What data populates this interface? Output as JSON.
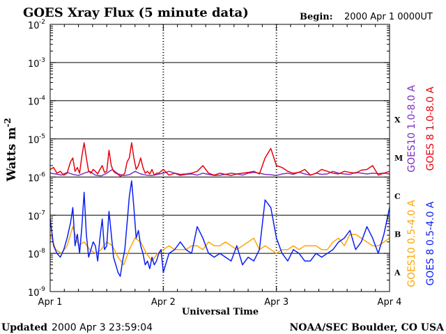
{
  "chart_data": {
    "type": "line",
    "title": "GOES Xray Flux (5 minute data)",
    "begin_label": "Begin:",
    "begin_value": "2000 Apr 1 0000UT",
    "ylabel_base": "Watts m",
    "ylabel_exp": "-2",
    "xlabel": "Universal Time",
    "xlim_days": [
      0,
      3
    ],
    "xticks": [
      {
        "day": 0,
        "label": "Apr 1"
      },
      {
        "day": 1,
        "label": "Apr 2"
      },
      {
        "day": 2,
        "label": "Apr 3"
      },
      {
        "day": 3,
        "label": "Apr 4"
      }
    ],
    "ylim_log10": [
      -9,
      -2
    ],
    "yticks": [
      {
        "exp": -2,
        "label": "-2"
      },
      {
        "exp": -3,
        "label": "-3"
      },
      {
        "exp": -4,
        "label": "-4"
      },
      {
        "exp": -5,
        "label": "-5"
      },
      {
        "exp": -6,
        "label": "-6"
      },
      {
        "exp": -7,
        "label": "-7"
      },
      {
        "exp": -8,
        "label": "-8"
      },
      {
        "exp": -9,
        "label": "-9"
      }
    ],
    "flare_classes": [
      {
        "label": "X",
        "exp": -4
      },
      {
        "label": "M",
        "exp": -5
      },
      {
        "label": "C",
        "exp": -6
      },
      {
        "label": "B",
        "exp": -7
      },
      {
        "label": "A",
        "exp": -8
      }
    ],
    "series": [
      {
        "name": "GOES10 1.0-8.0 A",
        "color": "#7a2fbf",
        "x_days": [
          0,
          0.05,
          0.1,
          0.15,
          0.2,
          0.25,
          0.3,
          0.35,
          0.4,
          0.45,
          0.5,
          0.55,
          0.6,
          0.65,
          0.7,
          0.75,
          0.8,
          0.85,
          0.9,
          0.95,
          1.0,
          1.05,
          1.1,
          1.15,
          1.2,
          1.25,
          1.3,
          1.35,
          1.4,
          1.45,
          1.5,
          1.55,
          1.6,
          1.65,
          1.7,
          1.75,
          1.8,
          1.85,
          1.9,
          1.95,
          2.0,
          2.05,
          2.1,
          2.15,
          2.2,
          2.25,
          2.3,
          2.35,
          2.4,
          2.45,
          2.5,
          2.55,
          2.6,
          2.65,
          2.7,
          2.75,
          2.8,
          2.85,
          2.9,
          2.95,
          3.0
        ],
        "log10_flux": [
          -5.9,
          -5.92,
          -5.95,
          -5.88,
          -5.93,
          -5.96,
          -5.9,
          -5.85,
          -5.95,
          -5.97,
          -5.9,
          -5.8,
          -5.92,
          -5.96,
          -5.94,
          -5.85,
          -5.92,
          -5.95,
          -5.96,
          -5.93,
          -5.9,
          -5.85,
          -5.9,
          -5.96,
          -5.93,
          -5.92,
          -5.95,
          -5.9,
          -5.93,
          -5.96,
          -5.95,
          -5.93,
          -5.9,
          -5.92,
          -5.95,
          -5.9,
          -5.88,
          -5.9,
          -5.93,
          -5.94,
          -5.96,
          -5.92,
          -5.9,
          -5.93,
          -5.87,
          -5.92,
          -5.95,
          -5.9,
          -5.93,
          -5.92,
          -5.85,
          -5.9,
          -5.92,
          -5.93,
          -5.88,
          -5.9,
          -5.92,
          -5.9,
          -5.91,
          -5.9,
          -5.92
        ]
      },
      {
        "name": "GOES 8 1.0-8.0 A",
        "color": "#e8000b",
        "x_days": [
          0,
          0.03,
          0.06,
          0.09,
          0.12,
          0.15,
          0.18,
          0.2,
          0.22,
          0.24,
          0.26,
          0.28,
          0.3,
          0.32,
          0.34,
          0.36,
          0.38,
          0.4,
          0.42,
          0.44,
          0.46,
          0.48,
          0.5,
          0.52,
          0.54,
          0.56,
          0.58,
          0.6,
          0.62,
          0.64,
          0.66,
          0.68,
          0.7,
          0.72,
          0.74,
          0.76,
          0.78,
          0.8,
          0.82,
          0.84,
          0.86,
          0.88,
          0.9,
          0.92,
          0.94,
          0.96,
          0.98,
          1.0,
          1.05,
          1.1,
          1.15,
          1.2,
          1.25,
          1.3,
          1.35,
          1.4,
          1.45,
          1.5,
          1.55,
          1.6,
          1.65,
          1.7,
          1.75,
          1.8,
          1.85,
          1.9,
          1.95,
          2.0,
          2.05,
          2.1,
          2.15,
          2.2,
          2.25,
          2.3,
          2.35,
          2.4,
          2.45,
          2.5,
          2.55,
          2.6,
          2.65,
          2.7,
          2.75,
          2.8,
          2.85,
          2.9,
          2.95,
          3.0
        ],
        "log10_flux": [
          -5.8,
          -5.75,
          -5.9,
          -5.85,
          -5.95,
          -5.9,
          -5.6,
          -5.5,
          -5.85,
          -5.75,
          -5.9,
          -5.45,
          -5.1,
          -5.5,
          -5.85,
          -5.9,
          -5.8,
          -5.85,
          -5.92,
          -5.8,
          -5.7,
          -5.88,
          -5.85,
          -5.3,
          -5.7,
          -5.85,
          -5.9,
          -5.93,
          -5.98,
          -5.95,
          -5.9,
          -5.6,
          -5.5,
          -5.1,
          -5.5,
          -5.8,
          -5.7,
          -5.5,
          -5.75,
          -5.9,
          -5.85,
          -5.92,
          -5.8,
          -5.95,
          -5.9,
          -5.9,
          -5.85,
          -5.8,
          -5.95,
          -5.9,
          -5.93,
          -5.92,
          -5.9,
          -5.85,
          -5.7,
          -5.9,
          -5.95,
          -5.9,
          -5.93,
          -5.96,
          -5.92,
          -5.9,
          -5.88,
          -5.85,
          -5.92,
          -5.5,
          -5.25,
          -5.7,
          -5.75,
          -5.85,
          -5.9,
          -5.88,
          -5.8,
          -5.95,
          -5.9,
          -5.8,
          -5.85,
          -5.9,
          -5.92,
          -5.85,
          -5.88,
          -5.9,
          -5.82,
          -5.8,
          -5.7,
          -5.95,
          -5.9,
          -5.85,
          -5.88,
          -5.8,
          -5.9
        ]
      },
      {
        "name": "GOES10 0.5-4.0 A",
        "color": "#ffa500",
        "x_days": [
          0,
          0.05,
          0.1,
          0.15,
          0.2,
          0.25,
          0.3,
          0.35,
          0.4,
          0.45,
          0.5,
          0.55,
          0.6,
          0.65,
          0.7,
          0.75,
          0.8,
          0.85,
          0.9,
          0.95,
          1.0,
          1.05,
          1.1,
          1.15,
          1.2,
          1.25,
          1.3,
          1.35,
          1.4,
          1.45,
          1.5,
          1.55,
          1.6,
          1.65,
          1.7,
          1.75,
          1.8,
          1.85,
          1.9,
          1.95,
          2.0,
          2.05,
          2.1,
          2.15,
          2.2,
          2.25,
          2.3,
          2.35,
          2.4,
          2.45,
          2.5,
          2.55,
          2.6,
          2.65,
          2.7,
          2.75,
          2.8,
          2.85,
          2.9,
          2.95,
          3.0
        ],
        "log10_flux": [
          -7.5,
          -7.9,
          -8.0,
          -7.8,
          -7.3,
          -7.8,
          -7.7,
          -7.9,
          -8.0,
          -7.9,
          -7.7,
          -7.8,
          -8.1,
          -8.3,
          -7.9,
          -7.6,
          -7.7,
          -8.0,
          -8.2,
          -8.0,
          -7.9,
          -7.8,
          -7.9,
          -7.9,
          -7.9,
          -7.8,
          -7.8,
          -7.9,
          -7.7,
          -7.8,
          -7.8,
          -7.7,
          -7.8,
          -7.9,
          -7.8,
          -7.7,
          -7.6,
          -7.9,
          -7.8,
          -7.9,
          -8.0,
          -7.9,
          -7.9,
          -7.8,
          -7.9,
          -7.8,
          -7.8,
          -7.8,
          -7.9,
          -7.9,
          -7.7,
          -7.6,
          -7.8,
          -7.5,
          -7.5,
          -7.6,
          -7.7,
          -7.8,
          -7.8,
          -7.7,
          -7.6
        ]
      },
      {
        "name": "GOES 8 0.5-4.0 A",
        "color": "#0a1ef5",
        "x_days": [
          0,
          0.03,
          0.06,
          0.09,
          0.12,
          0.15,
          0.18,
          0.2,
          0.22,
          0.24,
          0.26,
          0.28,
          0.3,
          0.32,
          0.34,
          0.36,
          0.38,
          0.4,
          0.42,
          0.44,
          0.46,
          0.48,
          0.5,
          0.52,
          0.54,
          0.56,
          0.58,
          0.6,
          0.62,
          0.64,
          0.66,
          0.68,
          0.7,
          0.72,
          0.74,
          0.76,
          0.78,
          0.8,
          0.82,
          0.84,
          0.86,
          0.88,
          0.9,
          0.92,
          0.94,
          0.96,
          0.98,
          1.0,
          1.05,
          1.1,
          1.15,
          1.2,
          1.25,
          1.3,
          1.35,
          1.4,
          1.45,
          1.5,
          1.55,
          1.6,
          1.65,
          1.7,
          1.75,
          1.8,
          1.85,
          1.9,
          1.95,
          2.0,
          2.05,
          2.1,
          2.15,
          2.2,
          2.25,
          2.3,
          2.35,
          2.4,
          2.45,
          2.5,
          2.55,
          2.6,
          2.65,
          2.7,
          2.75,
          2.8,
          2.85,
          2.9,
          2.95,
          3.0
        ],
        "log10_flux": [
          -7.1,
          -7.8,
          -8.0,
          -8.1,
          -7.9,
          -7.6,
          -7.2,
          -6.8,
          -7.8,
          -7.5,
          -8.0,
          -7.3,
          -6.4,
          -7.5,
          -8.1,
          -7.9,
          -7.7,
          -7.8,
          -8.2,
          -7.6,
          -7.1,
          -7.9,
          -7.8,
          -6.9,
          -7.5,
          -8.1,
          -8.3,
          -8.5,
          -8.6,
          -8.2,
          -7.9,
          -7.2,
          -6.5,
          -6.1,
          -6.8,
          -7.6,
          -7.4,
          -7.8,
          -8.0,
          -8.3,
          -8.2,
          -8.4,
          -8.1,
          -8.3,
          -8.2,
          -8.0,
          -7.9,
          -8.5,
          -8.0,
          -7.9,
          -7.7,
          -7.9,
          -8.0,
          -7.3,
          -7.6,
          -8.0,
          -8.1,
          -8.0,
          -8.1,
          -8.2,
          -7.8,
          -8.3,
          -8.1,
          -8.2,
          -7.9,
          -6.6,
          -6.8,
          -7.6,
          -8.0,
          -8.2,
          -7.9,
          -8.0,
          -8.2,
          -8.2,
          -8.0,
          -8.1,
          -8.0,
          -7.9,
          -7.7,
          -7.6,
          -7.4,
          -7.9,
          -7.7,
          -7.3,
          -7.6,
          -8.0,
          -7.5,
          -6.8,
          -7.5,
          -7.2,
          -7.9
        ]
      }
    ]
  },
  "footer": {
    "updated_label": "Updated",
    "updated_value": "2000 Apr  3 23:59:04",
    "credit": "NOAA/SEC Boulder, CO USA"
  }
}
